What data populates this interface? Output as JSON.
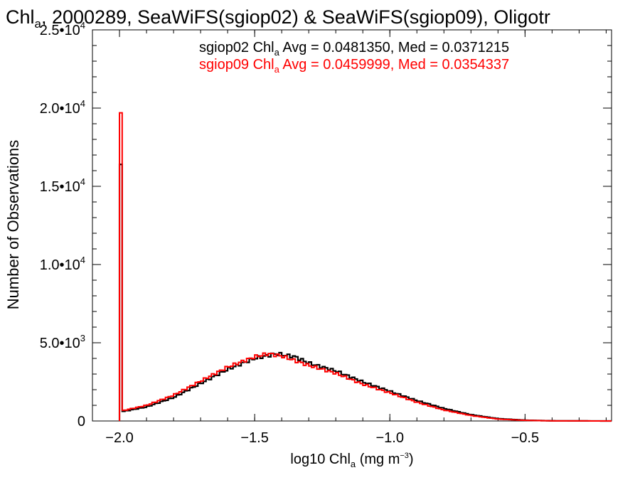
{
  "chart_data": {
    "type": "histogram",
    "title": {
      "pre": "Chl",
      "sub": "a",
      "post": ", 2000289, SeaWiFS(sgiop02) & SeaWiFS(sgiop09), Oligotr"
    },
    "xlabel": {
      "pre": "log10 Chl",
      "sub": "a",
      "mid": " (mg m",
      "sup": "−3",
      "post": ")"
    },
    "ylabel": "Number of Observations",
    "xlim": [
      -2.1,
      -0.18
    ],
    "ylim": [
      0,
      25000
    ],
    "x_ticks": [
      {
        "value": -2.0,
        "label": "−2.0"
      },
      {
        "value": -1.5,
        "label": "−1.5"
      },
      {
        "value": -1.0,
        "label": "−1.0"
      },
      {
        "value": -0.5,
        "label": "−0.5"
      }
    ],
    "y_ticks": [
      {
        "value": 0,
        "label": "0"
      },
      {
        "value": 5000,
        "label": "5.0•10",
        "exp": "3"
      },
      {
        "value": 10000,
        "label": "1.0•10",
        "exp": "4"
      },
      {
        "value": 15000,
        "label": "1.5•10",
        "exp": "4"
      },
      {
        "value": 20000,
        "label": "2.0•10",
        "exp": "4"
      },
      {
        "value": 25000,
        "label": "2.5•10",
        "exp": "4"
      }
    ],
    "legend_position": "top-right",
    "series": [
      {
        "label": {
          "pre": "sgiop02 Chl",
          "sub": "a",
          "post": " Avg = 0.0481350, Med = 0.0371215"
        },
        "color": "#000000",
        "spike": {
          "x": -1.99,
          "value": 16400
        },
        "points": [
          [
            -1.99,
            600
          ],
          [
            -1.9,
            900
          ],
          [
            -1.8,
            1500
          ],
          [
            -1.7,
            2400
          ],
          [
            -1.6,
            3300
          ],
          [
            -1.5,
            4000
          ],
          [
            -1.42,
            4300
          ],
          [
            -1.35,
            4100
          ],
          [
            -1.3,
            3700
          ],
          [
            -1.2,
            3200
          ],
          [
            -1.1,
            2500
          ],
          [
            -1.0,
            1900
          ],
          [
            -0.9,
            1300
          ],
          [
            -0.8,
            800
          ],
          [
            -0.7,
            400
          ],
          [
            -0.6,
            150
          ],
          [
            -0.5,
            50
          ],
          [
            -0.4,
            10
          ],
          [
            -0.18,
            0
          ]
        ]
      },
      {
        "label": {
          "pre": "sgiop09 Chl",
          "sub": "a",
          "post": " Avg = 0.0459999, Med = 0.0354337"
        },
        "color": "#ff0000",
        "spike": {
          "x": -1.99,
          "value": 19700
        },
        "points": [
          [
            -1.99,
            650
          ],
          [
            -1.9,
            1000
          ],
          [
            -1.8,
            1650
          ],
          [
            -1.7,
            2550
          ],
          [
            -1.6,
            3450
          ],
          [
            -1.5,
            4100
          ],
          [
            -1.45,
            4300
          ],
          [
            -1.4,
            4150
          ],
          [
            -1.3,
            3550
          ],
          [
            -1.2,
            3050
          ],
          [
            -1.1,
            2350
          ],
          [
            -1.0,
            1800
          ],
          [
            -0.9,
            1200
          ],
          [
            -0.8,
            700
          ],
          [
            -0.7,
            350
          ],
          [
            -0.6,
            120
          ],
          [
            -0.5,
            40
          ],
          [
            -0.4,
            8
          ],
          [
            -0.18,
            0
          ]
        ]
      }
    ]
  }
}
